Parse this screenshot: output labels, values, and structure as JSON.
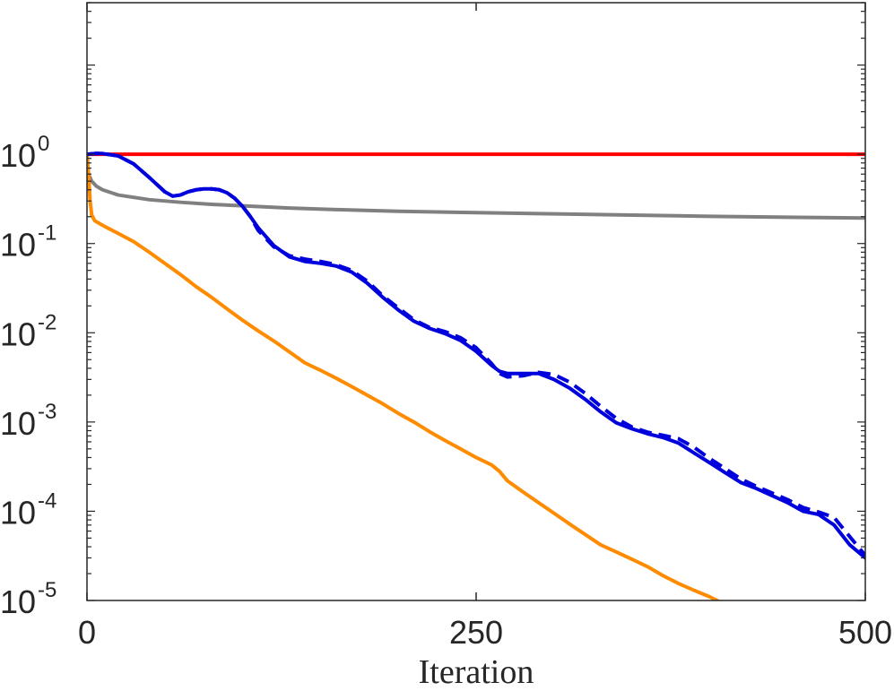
{
  "chart_data": {
    "type": "line",
    "title": "",
    "xlabel": "Iteration",
    "ylabel": "",
    "xlim": [
      0,
      500
    ],
    "ylim": [
      1e-05,
      50
    ],
    "yscale": "log",
    "grid": false,
    "legend": "none",
    "x_ticks": [
      {
        "value": 0,
        "label": "0"
      },
      {
        "value": 250,
        "label": "250"
      },
      {
        "value": 500,
        "label": "500"
      }
    ],
    "y_ticks": [
      {
        "value": 1,
        "base": "10",
        "exp": "0"
      },
      {
        "value": 0.1,
        "base": "10",
        "exp": "-1"
      },
      {
        "value": 0.01,
        "base": "10",
        "exp": "-2"
      },
      {
        "value": 0.001,
        "base": "10",
        "exp": "-3"
      },
      {
        "value": 0.0001,
        "base": "10",
        "exp": "-4"
      },
      {
        "value": 1e-05,
        "base": "10",
        "exp": "-5"
      }
    ],
    "series": [
      {
        "color": "#ff0000",
        "dash": "solid",
        "x": [
          0,
          500
        ],
        "y": [
          1.0,
          1.0
        ]
      },
      {
        "color": "#808080",
        "dash": "solid",
        "x": [
          0,
          1,
          3,
          6,
          10,
          20,
          40,
          60,
          80,
          100,
          130,
          160,
          200,
          250,
          300,
          350,
          400,
          450,
          500
        ],
        "y": [
          1.0,
          0.6,
          0.5,
          0.44,
          0.4,
          0.35,
          0.31,
          0.29,
          0.275,
          0.265,
          0.25,
          0.24,
          0.23,
          0.222,
          0.215,
          0.208,
          0.202,
          0.197,
          0.193
        ]
      },
      {
        "color": "#ff8c00",
        "dash": "solid",
        "x": [
          0,
          1,
          2,
          3,
          5,
          10,
          20,
          30,
          40,
          50,
          60,
          70,
          80,
          90,
          100,
          110,
          120,
          130,
          140,
          150,
          160,
          170,
          180,
          190,
          200,
          210,
          220,
          230,
          240,
          250,
          260,
          265,
          270,
          280,
          290,
          300,
          310,
          320,
          330,
          340,
          350,
          360,
          370,
          380,
          390,
          400,
          410,
          420,
          422
        ],
        "y": [
          1.0,
          0.6,
          0.3,
          0.21,
          0.18,
          0.16,
          0.13,
          0.105,
          0.08,
          0.06,
          0.045,
          0.033,
          0.025,
          0.0185,
          0.0138,
          0.0105,
          0.0081,
          0.0061,
          0.0046,
          0.0038,
          0.0031,
          0.0025,
          0.002,
          0.0016,
          0.00125,
          0.001,
          0.00078,
          0.00062,
          0.0005,
          0.0004,
          0.00033,
          0.00028,
          0.00022,
          0.000165,
          0.000125,
          9.5e-05,
          7.2e-05,
          5.5e-05,
          4.2e-05,
          3.5e-05,
          2.9e-05,
          2.4e-05,
          1.9e-05,
          1.55e-05,
          1.3e-05,
          1.1e-05,
          9e-06,
          7.5e-06,
          7.2e-06
        ]
      },
      {
        "color": "#0000dd",
        "dash": "solid",
        "x": [
          0,
          5,
          10,
          20,
          30,
          40,
          50,
          55,
          60,
          65,
          70,
          75,
          80,
          85,
          90,
          95,
          100,
          105,
          110,
          120,
          130,
          140,
          150,
          160,
          170,
          180,
          190,
          200,
          210,
          220,
          230,
          240,
          250,
          260,
          265,
          270,
          280,
          290,
          300,
          310,
          320,
          330,
          340,
          350,
          360,
          370,
          380,
          390,
          400,
          410,
          420,
          430,
          440,
          450,
          460,
          470,
          480,
          490,
          500
        ],
        "y": [
          1.0,
          1.02,
          1.02,
          0.96,
          0.78,
          0.55,
          0.38,
          0.34,
          0.35,
          0.38,
          0.4,
          0.41,
          0.41,
          0.4,
          0.37,
          0.32,
          0.26,
          0.2,
          0.15,
          0.095,
          0.071,
          0.063,
          0.06,
          0.056,
          0.048,
          0.036,
          0.025,
          0.018,
          0.0135,
          0.0112,
          0.0098,
          0.0082,
          0.0062,
          0.0043,
          0.0037,
          0.0035,
          0.0035,
          0.0035,
          0.003,
          0.0024,
          0.0018,
          0.0013,
          0.00098,
          0.00084,
          0.00074,
          0.00067,
          0.00058,
          0.00045,
          0.00035,
          0.00027,
          0.00021,
          0.00018,
          0.00015,
          0.000125,
          0.0001,
          9.2e-05,
          7e-05,
          4.2e-05,
          3e-05
        ]
      },
      {
        "color": "#0000dd",
        "dash": "dashed",
        "x": [
          0,
          5,
          10,
          20,
          30,
          40,
          50,
          55,
          60,
          65,
          70,
          75,
          80,
          85,
          90,
          95,
          100,
          105,
          110,
          120,
          130,
          140,
          150,
          160,
          170,
          180,
          190,
          200,
          210,
          220,
          230,
          240,
          250,
          260,
          265,
          270,
          280,
          290,
          300,
          310,
          320,
          330,
          340,
          350,
          360,
          370,
          380,
          390,
          400,
          410,
          420,
          430,
          440,
          450,
          460,
          470,
          480,
          490,
          500
        ],
        "y": [
          1.0,
          1.02,
          1.02,
          0.96,
          0.78,
          0.55,
          0.38,
          0.34,
          0.35,
          0.38,
          0.4,
          0.41,
          0.41,
          0.4,
          0.37,
          0.32,
          0.26,
          0.2,
          0.14,
          0.092,
          0.073,
          0.067,
          0.063,
          0.058,
          0.05,
          0.038,
          0.026,
          0.019,
          0.014,
          0.0115,
          0.0103,
          0.0088,
          0.0068,
          0.0045,
          0.0035,
          0.0032,
          0.0033,
          0.0036,
          0.0034,
          0.0028,
          0.0021,
          0.0015,
          0.0011,
          0.00088,
          0.00077,
          0.00071,
          0.00065,
          0.00052,
          0.00039,
          0.0003,
          0.00023,
          0.00019,
          0.00016,
          0.000135,
          0.00011,
          9.8e-05,
          8.5e-05,
          5.2e-05,
          3.2e-05
        ]
      }
    ]
  }
}
